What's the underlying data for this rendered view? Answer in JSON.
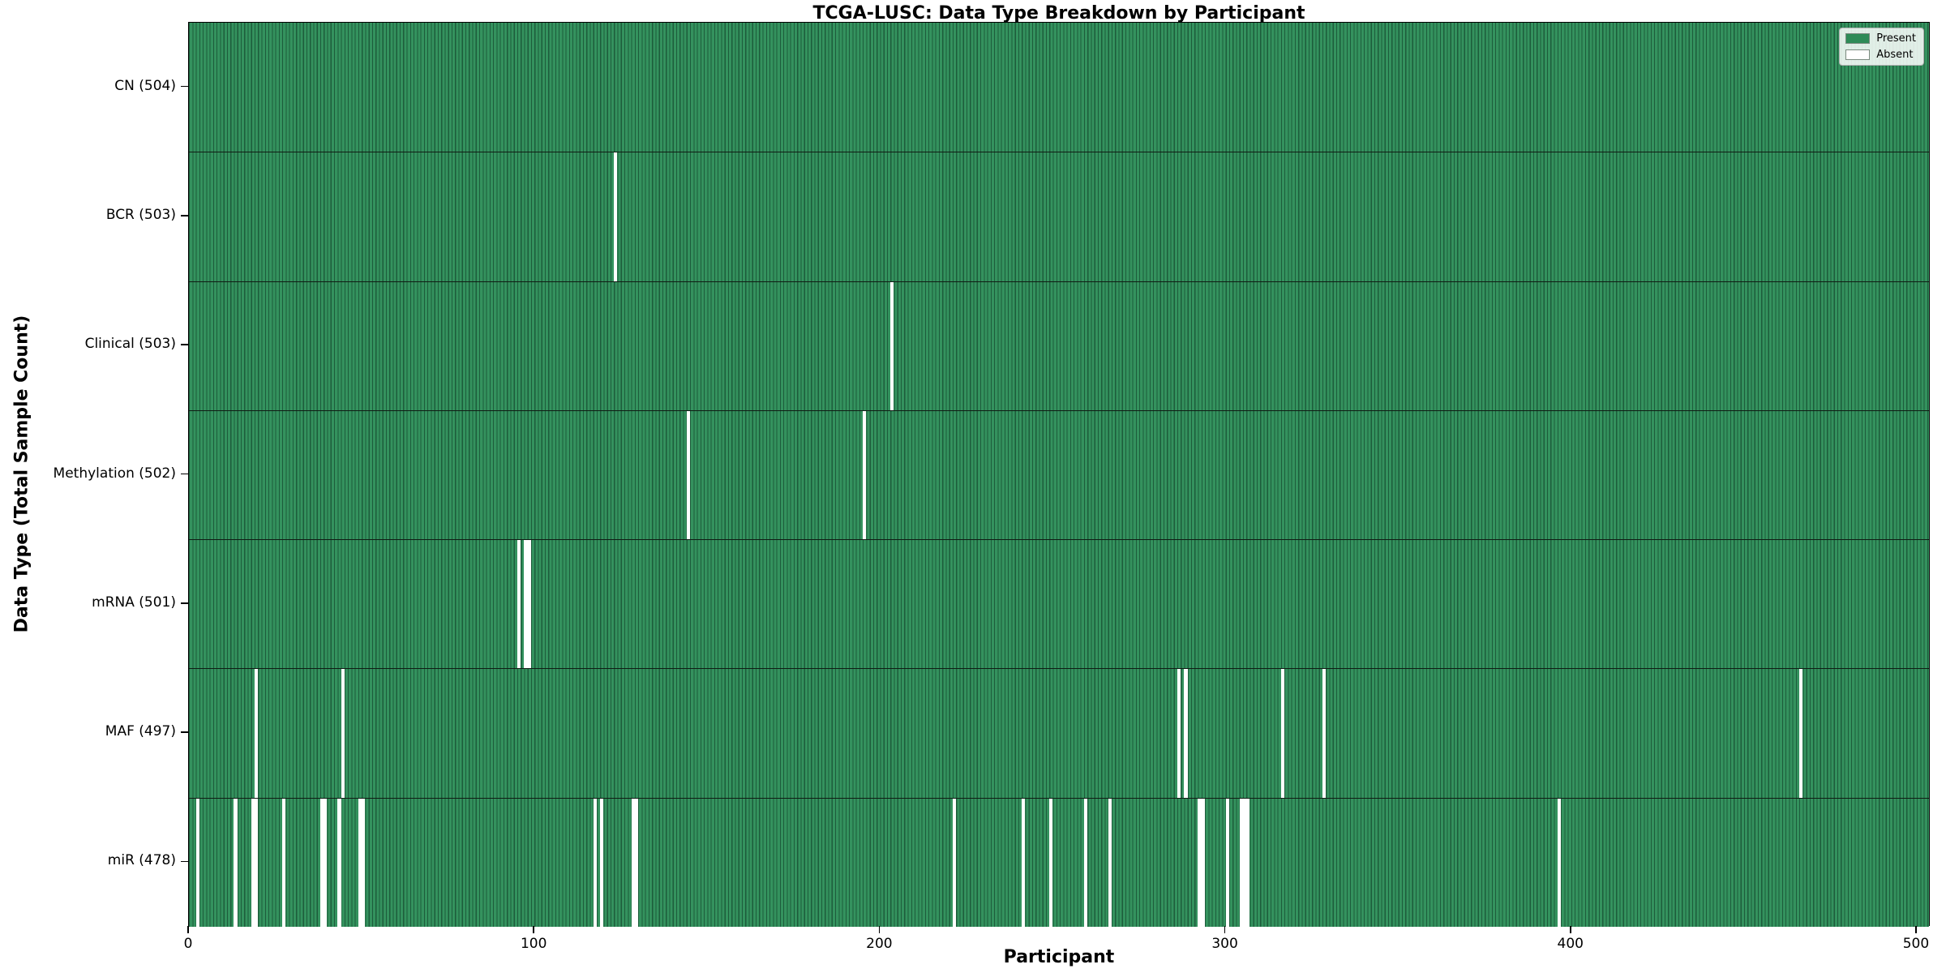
{
  "chart_data": {
    "type": "heatmap",
    "title": "TCGA-LUSC: Data Type Breakdown by Participant",
    "xlabel": "Participant",
    "ylabel": "Data Type (Total Sample Count)",
    "n_participants": 504,
    "x_ticks": [
      0,
      100,
      200,
      300,
      400,
      500
    ],
    "xlim": [
      0,
      504
    ],
    "grid": false,
    "legend_position": "upper right",
    "colors": {
      "present": "#2e8b57",
      "present_edge": "#1d5c3b",
      "absent": "#ffffff"
    },
    "legend": [
      {
        "label": "Present",
        "color": "#2e8b57"
      },
      {
        "label": "Absent",
        "color": "#ffffff"
      }
    ],
    "rows": [
      {
        "label": "CN (504)",
        "total": 504,
        "absent_count": 0,
        "absent": []
      },
      {
        "label": "BCR (503)",
        "total": 503,
        "absent_count": 1,
        "absent": [
          124
        ]
      },
      {
        "label": "Clinical (503)",
        "total": 503,
        "absent_count": 1,
        "absent": [
          204
        ]
      },
      {
        "label": "Methylation (502)",
        "total": 502,
        "absent_count": 2,
        "absent": [
          145,
          196
        ]
      },
      {
        "label": "mRNA (501)",
        "total": 501,
        "absent_count": 3,
        "absent": [
          96,
          98,
          99
        ]
      },
      {
        "label": "MAF (497)",
        "total": 497,
        "absent_count": 7,
        "absent": [
          20,
          45,
          287,
          289,
          317,
          329,
          467
        ]
      },
      {
        "label": "miR (478)",
        "total": 478,
        "absent_count": 26,
        "absent": [
          3,
          14,
          19,
          20,
          28,
          39,
          40,
          44,
          50,
          51,
          118,
          120,
          129,
          130,
          222,
          242,
          250,
          260,
          267,
          293,
          294,
          301,
          305,
          306,
          307,
          397
        ]
      }
    ]
  }
}
